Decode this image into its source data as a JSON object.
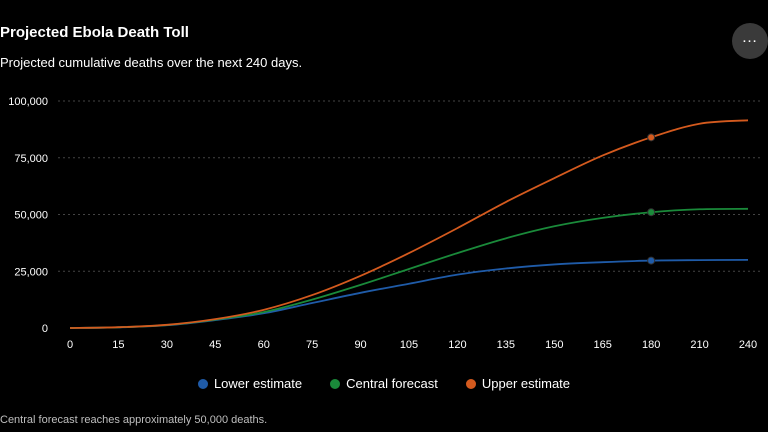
{
  "header": {
    "title": "Projected Ebola Death Toll",
    "subtitle": "Projected cumulative deaths over the next 240 days.",
    "more_label": "…"
  },
  "footnote": "Central forecast reaches approximately 50,000 deaths.",
  "chart_data": {
    "type": "line",
    "title": "Projected Ebola Death Toll",
    "subtitle": "Projected cumulative deaths over the next 240 days.",
    "xlabel": "",
    "ylabel": "",
    "xlim": [
      0,
      240
    ],
    "ylim": [
      0,
      100000
    ],
    "x_ticks": [
      0,
      15,
      30,
      45,
      60,
      75,
      90,
      105,
      120,
      135,
      150,
      165,
      180,
      210,
      240
    ],
    "y_ticks": [
      0,
      25000,
      50000,
      75000,
      100000
    ],
    "y_tick_labels": [
      "0",
      "25,000",
      "50,000",
      "75,000",
      "100,000"
    ],
    "grid": "horizontal dotted",
    "legend_position": "bottom-center",
    "x": [
      0,
      15,
      30,
      45,
      60,
      75,
      90,
      105,
      120,
      135,
      150,
      165,
      180,
      210,
      240
    ],
    "series": [
      {
        "name": "Lower estimate",
        "color": "#1f5ba8",
        "values": [
          0,
          300,
          1200,
          3500,
          6500,
          11000,
          15500,
          19500,
          23500,
          26200,
          28000,
          29000,
          29700,
          29900,
          30000
        ],
        "marker_at_x": 180
      },
      {
        "name": "Central forecast",
        "color": "#1a8a3a",
        "values": [
          0,
          300,
          1300,
          3700,
          7000,
          12500,
          19000,
          26000,
          33000,
          39500,
          44800,
          48500,
          51000,
          52300,
          52500
        ],
        "marker_at_x": 180
      },
      {
        "name": "Upper estimate",
        "color": "#d45a1e",
        "values": [
          0,
          350,
          1400,
          3900,
          8000,
          14500,
          23000,
          33000,
          44000,
          55500,
          66000,
          76000,
          84000,
          90000,
          91500
        ],
        "marker_at_x": 180
      }
    ]
  }
}
